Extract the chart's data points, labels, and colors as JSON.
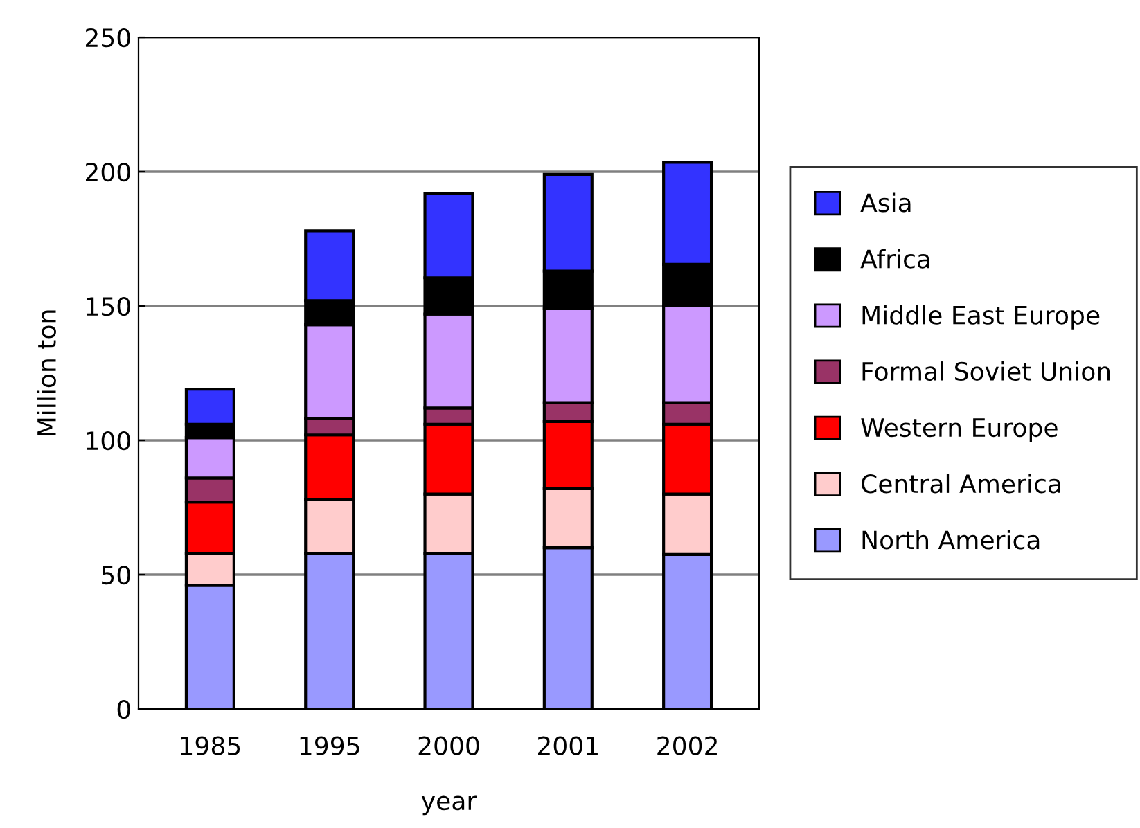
{
  "chart_data": {
    "type": "bar",
    "stacked": true,
    "xlabel": "year",
    "ylabel": "Million ton",
    "categories": [
      "1985",
      "1995",
      "2000",
      "2001",
      "2002"
    ],
    "series": [
      {
        "name": "North America",
        "color": "#9999ff",
        "values": [
          46,
          58,
          58,
          60,
          57.5
        ]
      },
      {
        "name": "Central America",
        "color": "#ffcccc",
        "values": [
          12,
          20,
          22,
          22,
          22.5
        ]
      },
      {
        "name": "Western Europe",
        "color": "#ff0000",
        "values": [
          19,
          24,
          26,
          25,
          26
        ]
      },
      {
        "name": "Formal Soviet Union",
        "color": "#993366",
        "values": [
          9,
          6,
          6,
          7,
          8
        ]
      },
      {
        "name": "Middle East Europe",
        "color": "#cc99ff",
        "values": [
          15,
          35,
          35,
          35,
          36
        ]
      },
      {
        "name": "Africa",
        "color": "#000000",
        "values": [
          5,
          9,
          13.5,
          14,
          15.5
        ]
      },
      {
        "name": "Asia",
        "color": "#3333ff",
        "values": [
          13,
          26,
          31.5,
          36,
          38
        ]
      }
    ],
    "ylim": [
      0,
      250
    ],
    "yticks": [
      0,
      50,
      100,
      150,
      200,
      250
    ],
    "grid": "y",
    "legend": "right"
  }
}
